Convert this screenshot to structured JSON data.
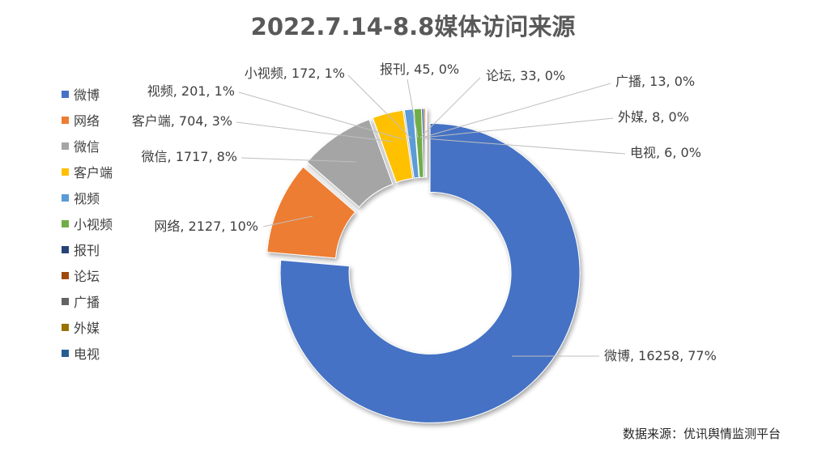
{
  "title": "2022.7.14-8.8媒体访问来源",
  "source": "数据来源：优讯舆情监测平台",
  "colors": {
    "微博": "#4472C4",
    "网络": "#ED7D31",
    "微信": "#A5A5A5",
    "客户端": "#FFC000",
    "视频": "#5B9BD5",
    "小视频": "#70AD47",
    "报刊": "#264478",
    "论坛": "#9E480E",
    "广播": "#636363",
    "外媒": "#997300",
    "电视": "#255E91"
  },
  "legend": [
    "微博",
    "网络",
    "微信",
    "客户端",
    "视频",
    "小视频",
    "报刊",
    "论坛",
    "广播",
    "外媒",
    "电视"
  ],
  "chart_data": {
    "type": "pie",
    "title": "2022.7.14-8.8媒体访问来源",
    "donut": true,
    "exploded": true,
    "legend_position": "left",
    "labels": [
      {
        "name": "微博",
        "value": 16258,
        "percent": "77%",
        "text": "微博, 16258, 77%"
      },
      {
        "name": "网络",
        "value": 2127,
        "percent": "10%",
        "text": "网络, 2127, 10%"
      },
      {
        "name": "微信",
        "value": 1717,
        "percent": "8%",
        "text": "微信, 1717, 8%"
      },
      {
        "name": "客户端",
        "value": 704,
        "percent": "3%",
        "text": "客户端, 704, 3%"
      },
      {
        "name": "视频",
        "value": 201,
        "percent": "1%",
        "text": "视频, 201, 1%"
      },
      {
        "name": "小视频",
        "value": 172,
        "percent": "1%",
        "text": "小视频, 172, 1%"
      },
      {
        "name": "报刊",
        "value": 45,
        "percent": "0%",
        "text": "报刊, 45, 0%"
      },
      {
        "name": "论坛",
        "value": 33,
        "percent": "0%",
        "text": "论坛, 33, 0%"
      },
      {
        "name": "广播",
        "value": 13,
        "percent": "0%",
        "text": "广播, 13, 0%"
      },
      {
        "name": "外媒",
        "value": 8,
        "percent": "0%",
        "text": "外媒, 8, 0%"
      },
      {
        "name": "电视",
        "value": 6,
        "percent": "0%",
        "text": "电视, 6, 0%"
      }
    ]
  }
}
